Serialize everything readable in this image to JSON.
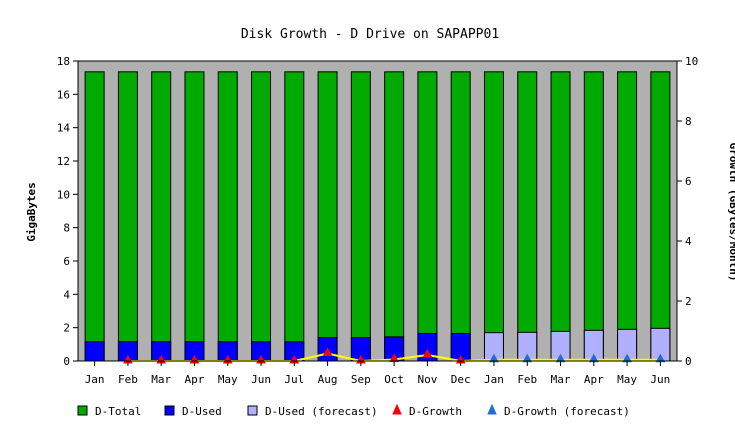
{
  "chart_data": {
    "type": "bar",
    "title": "Disk Growth - D Drive on SAPAPP01",
    "ylabel": "GigaBytes",
    "y2label": "Growth (GBytes/Month)",
    "ylim": [
      0,
      18
    ],
    "y2lim": [
      0,
      10
    ],
    "yticks": [
      0,
      2,
      4,
      6,
      8,
      10,
      12,
      14,
      16,
      18
    ],
    "y2ticks": [
      0,
      2,
      4,
      6,
      8,
      10
    ],
    "categories": [
      "Jan",
      "Feb",
      "Mar",
      "Apr",
      "May",
      "Jun",
      "Jul",
      "Aug",
      "Sep",
      "Oct",
      "Nov",
      "Dec",
      "Jan",
      "Feb",
      "Mar",
      "Apr",
      "May",
      "Jun"
    ],
    "plot_background": "#b0b0b0",
    "grid": false,
    "legend_position": "bottom",
    "series": [
      {
        "name": "D-Total",
        "kind": "bar",
        "color": "#00aa00",
        "values": [
          17.35,
          17.35,
          17.35,
          17.35,
          17.35,
          17.35,
          17.35,
          17.35,
          17.35,
          17.35,
          17.35,
          17.35,
          17.35,
          17.35,
          17.35,
          17.35,
          17.35,
          17.35
        ]
      },
      {
        "name": "D-Used",
        "kind": "bar",
        "color": "#0000ff",
        "values": [
          1.15,
          1.15,
          1.15,
          1.15,
          1.15,
          1.15,
          1.15,
          1.4,
          1.4,
          1.45,
          1.65,
          1.65,
          null,
          null,
          null,
          null,
          null,
          null
        ]
      },
      {
        "name": "D-Used (forecast)",
        "kind": "bar",
        "color": "#b0b0ff",
        "values": [
          null,
          null,
          null,
          null,
          null,
          null,
          null,
          null,
          null,
          null,
          null,
          null,
          1.7,
          1.72,
          1.78,
          1.84,
          1.9,
          1.96
        ]
      },
      {
        "name": "D-Growth",
        "kind": "line",
        "axis": "right",
        "color": "#ffff00",
        "marker_color": "#ff0000",
        "values": [
          null,
          0.0,
          0.0,
          0.0,
          0.0,
          0.0,
          0.0,
          0.25,
          0.0,
          0.05,
          0.2,
          0.0,
          null,
          null,
          null,
          null,
          null,
          null
        ]
      },
      {
        "name": "D-Growth (forecast)",
        "kind": "line",
        "axis": "right",
        "color": "#ffff00",
        "marker_color": "#1e6fd9",
        "values": [
          null,
          null,
          null,
          null,
          null,
          null,
          null,
          null,
          null,
          null,
          null,
          null,
          0.04,
          0.04,
          0.04,
          0.04,
          0.04,
          0.04
        ]
      }
    ]
  }
}
